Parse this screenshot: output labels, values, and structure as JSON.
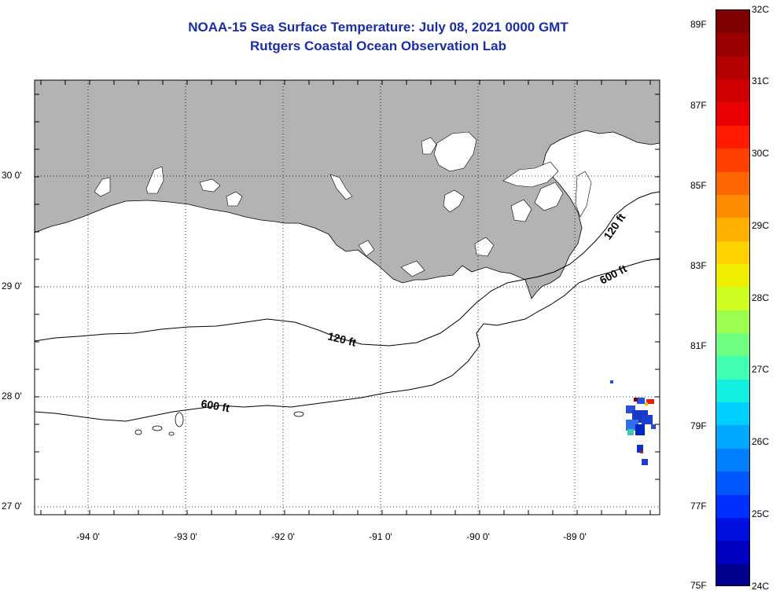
{
  "header": {
    "title": "NOAA-15 Sea Surface Temperature:  July 08, 2021 0000 GMT",
    "subtitle": "Rutgers Coastal Ocean Observation Lab"
  },
  "map": {
    "lat_labels": [
      "30 0'",
      "29 0'",
      "28 0'",
      "27 0'"
    ],
    "lon_labels": [
      "-94 0'",
      "-93 0'",
      "-92 0'",
      "-91 0'",
      "-90 0'",
      "-89 0'"
    ],
    "land_color": "#b3b3b3",
    "water_color": "#ffffff",
    "contour_labels": {
      "c120_west": "120 ft",
      "c600_west": "600 ft",
      "c120_east": "120 ft",
      "c600_east": "600 ft"
    }
  },
  "colorbar": {
    "fahrenheit_labels": [
      "89F",
      "87F",
      "85F",
      "83F",
      "81F",
      "79F",
      "77F",
      "75F"
    ],
    "celsius_labels": [
      "32C",
      "31C",
      "30C",
      "29C",
      "28C",
      "27C",
      "26C",
      "25C",
      "24C"
    ],
    "colors": [
      "#7f0000",
      "#9a0000",
      "#b40000",
      "#d00000",
      "#ea0000",
      "#ff1a00",
      "#ff4000",
      "#ff6600",
      "#ff8c00",
      "#ffb000",
      "#ffd200",
      "#f2ee00",
      "#ccff20",
      "#9cff50",
      "#6eff80",
      "#40ffb0",
      "#10f0e0",
      "#00d0ff",
      "#00a8ff",
      "#0080ff",
      "#0058ff",
      "#0030ff",
      "#0010e0",
      "#0000c0",
      "#00008c"
    ]
  }
}
